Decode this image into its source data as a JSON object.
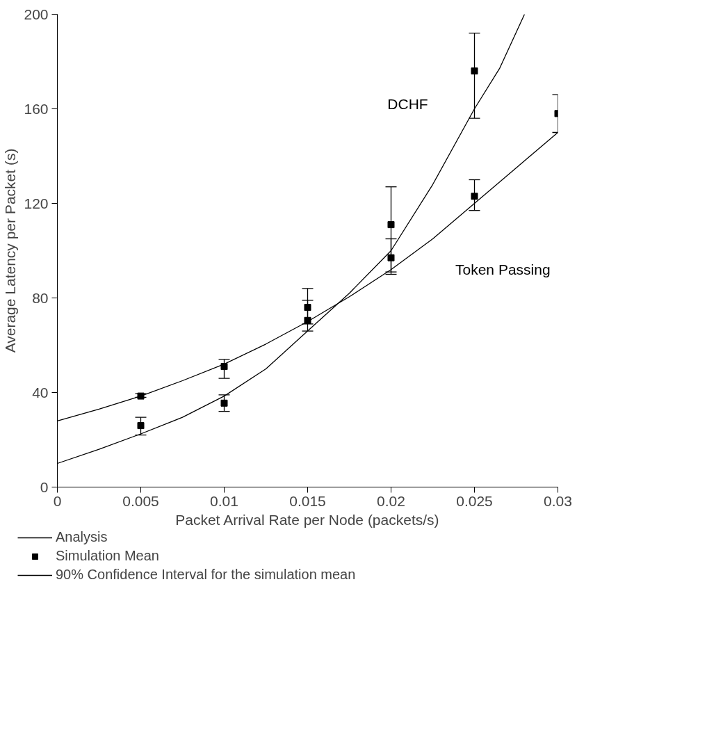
{
  "chart_data": {
    "type": "line",
    "xlabel": "Packet Arrival Rate per Node (packets/s)",
    "ylabel": "Average Latency per Packet (s)",
    "xlim": [
      0,
      0.03
    ],
    "ylim": [
      0,
      200
    ],
    "xticks": [
      0,
      0.005,
      0.01,
      0.015,
      0.02,
      0.025,
      0.03
    ],
    "yticks": [
      0,
      40,
      80,
      120,
      160,
      200
    ],
    "grid": false,
    "legend": "bottom left",
    "series": [
      {
        "name": "Analysis",
        "color": "#000000",
        "x": [
          0,
          0.0025,
          0.005,
          0.0075,
          0.01,
          0.0125,
          0.015,
          0.0175,
          0.02,
          0.0225,
          0.025,
          0.0265,
          0.028
        ],
        "values": [
          10,
          16,
          22.5,
          29.5,
          38.5,
          50,
          66,
          82,
          100,
          128,
          160,
          177,
          200
        ]
      },
      {
        "color": "#000000",
        "x": [
          0,
          0.0025,
          0.005,
          0.0075,
          0.01,
          0.0125,
          0.015,
          0.0175,
          0.02,
          0.0225,
          0.025,
          0.0275,
          0.03
        ],
        "values": [
          28,
          33,
          38.5,
          45,
          52,
          60.5,
          70,
          80.5,
          92,
          105,
          120,
          135,
          150
        ]
      },
      {
        "name": "Simulation Mean",
        "type": "scatter",
        "marker": "square",
        "color": "#000000",
        "x": [
          0.005,
          0.01,
          0.015,
          0.02,
          0.025
        ],
        "values": [
          26,
          35.5,
          70.5,
          111,
          176
        ],
        "errors": [
          [
            22,
            29.5
          ],
          [
            32,
            39
          ],
          [
            66,
            79
          ],
          [
            91,
            127
          ],
          [
            156,
            192
          ]
        ]
      },
      {
        "type": "scatter",
        "marker": "square",
        "color": "#000000",
        "x": [
          0.005,
          0.01,
          0.015,
          0.02,
          0.025,
          0.03
        ],
        "values": [
          38.5,
          51,
          76,
          97,
          123,
          158
        ],
        "errors": [
          [
            38,
            39.5
          ],
          [
            46,
            54
          ],
          [
            69,
            84
          ],
          [
            90,
            105
          ],
          [
            117,
            130
          ],
          [
            150,
            166
          ]
        ]
      }
    ],
    "annotations": [
      "DCHF",
      "Token Passing",
      "90% Confidence Interval for the simulation mean"
    ]
  }
}
